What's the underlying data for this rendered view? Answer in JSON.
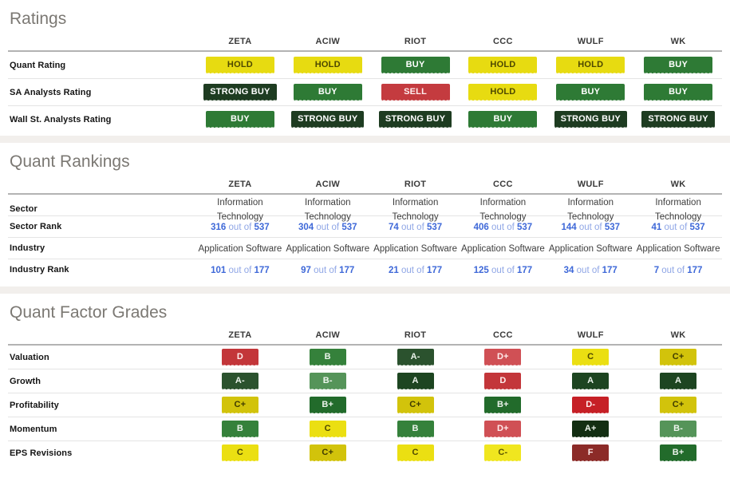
{
  "colors": {
    "heading_gray": "#7b7873",
    "link_blue_bold": "#3e68d8",
    "link_blue_light": "#8fa6e6",
    "divider_strip": "#f2efec",
    "header_rule": "#b3b3b3",
    "row_rule": "#e4e4e4"
  },
  "grade_colors": {
    "HOLD": {
      "bg": "#e7db11",
      "fg": "#4e4800"
    },
    "BUY": {
      "bg": "#2e7a35",
      "fg": "#ffffff"
    },
    "STRONG BUY": {
      "bg": "#1e3c21",
      "fg": "#ffffff"
    },
    "SELL": {
      "bg": "#c43b3f",
      "fg": "#fff0f0"
    },
    "A+": {
      "bg": "#132e12",
      "fg": "#eaf2ea"
    },
    "A": {
      "bg": "#1d4521",
      "fg": "#eaf2ea"
    },
    "A-": {
      "bg": "#2b522e",
      "fg": "#eaf2ea"
    },
    "B+": {
      "bg": "#226b2b",
      "fg": "#eaf2ea"
    },
    "B": {
      "bg": "#35813b",
      "fg": "#eaf2ea"
    },
    "B-": {
      "bg": "#559459",
      "fg": "#eef5ee"
    },
    "C+": {
      "bg": "#d2c30b",
      "fg": "#3f3b00"
    },
    "C": {
      "bg": "#ebdf12",
      "fg": "#4e4800"
    },
    "C-": {
      "bg": "#f0e61f",
      "fg": "#5a5400"
    },
    "D+": {
      "bg": "#d05055",
      "fg": "#ffecec"
    },
    "D": {
      "bg": "#c3363a",
      "fg": "#ffecec"
    },
    "D-": {
      "bg": "#c62026",
      "fg": "#ffecec"
    },
    "F": {
      "bg": "#8c2b28",
      "fg": "#ffecec"
    }
  },
  "sections": [
    {
      "title": "Ratings",
      "tickers": [
        "ZETA",
        "ACIW",
        "RIOT",
        "CCC",
        "WULF",
        "WK"
      ],
      "rows": [
        {
          "label": "Quant Rating",
          "type": "badge",
          "values": [
            "HOLD",
            "HOLD",
            "BUY",
            "HOLD",
            "HOLD",
            "BUY"
          ]
        },
        {
          "label": "SA Analysts Rating",
          "type": "badge",
          "values": [
            "STRONG BUY",
            "BUY",
            "SELL",
            "HOLD",
            "BUY",
            "BUY"
          ]
        },
        {
          "label": "Wall St. Analysts Rating",
          "type": "badge",
          "values": [
            "BUY",
            "STRONG BUY",
            "STRONG BUY",
            "BUY",
            "STRONG BUY",
            "STRONG BUY"
          ]
        }
      ]
    },
    {
      "title": "Quant Rankings",
      "tickers": [
        "ZETA",
        "ACIW",
        "RIOT",
        "CCC",
        "WULF",
        "WK"
      ],
      "rows": [
        {
          "label": "Sector",
          "type": "text",
          "values": [
            "Information Technology",
            "Information Technology",
            "Information Technology",
            "Information Technology",
            "Information Technology",
            "Information Technology"
          ]
        },
        {
          "label": "Sector Rank",
          "type": "rank",
          "sep": "out of",
          "values": [
            {
              "value": "316",
              "total": "537"
            },
            {
              "value": "304",
              "total": "537"
            },
            {
              "value": "74",
              "total": "537"
            },
            {
              "value": "406",
              "total": "537"
            },
            {
              "value": "144",
              "total": "537"
            },
            {
              "value": "41",
              "total": "537"
            }
          ]
        },
        {
          "label": "Industry",
          "type": "text",
          "values": [
            "Application Software",
            "Application Software",
            "Application Software",
            "Application Software",
            "Application Software",
            "Application Software"
          ]
        },
        {
          "label": "Industry Rank",
          "type": "rank",
          "sep": "out of",
          "values": [
            {
              "value": "101",
              "total": "177"
            },
            {
              "value": "97",
              "total": "177"
            },
            {
              "value": "21",
              "total": "177"
            },
            {
              "value": "125",
              "total": "177"
            },
            {
              "value": "34",
              "total": "177"
            },
            {
              "value": "7",
              "total": "177"
            }
          ]
        }
      ]
    },
    {
      "title": "Quant Factor Grades",
      "tickers": [
        "ZETA",
        "ACIW",
        "RIOT",
        "CCC",
        "WULF",
        "WK"
      ],
      "rows": [
        {
          "label": "Valuation",
          "type": "grade",
          "values": [
            "D",
            "B",
            "A-",
            "D+",
            "C",
            "C+"
          ]
        },
        {
          "label": "Growth",
          "type": "grade",
          "values": [
            "A-",
            "B-",
            "A",
            "D",
            "A",
            "A"
          ]
        },
        {
          "label": "Profitability",
          "type": "grade",
          "values": [
            "C+",
            "B+",
            "C+",
            "B+",
            "D-",
            "C+"
          ]
        },
        {
          "label": "Momentum",
          "type": "grade",
          "values": [
            "B",
            "C",
            "B",
            "D+",
            "A+",
            "B-"
          ]
        },
        {
          "label": "EPS Revisions",
          "type": "grade",
          "values": [
            "C",
            "C+",
            "C",
            "C-",
            "F",
            "B+"
          ]
        }
      ]
    }
  ]
}
